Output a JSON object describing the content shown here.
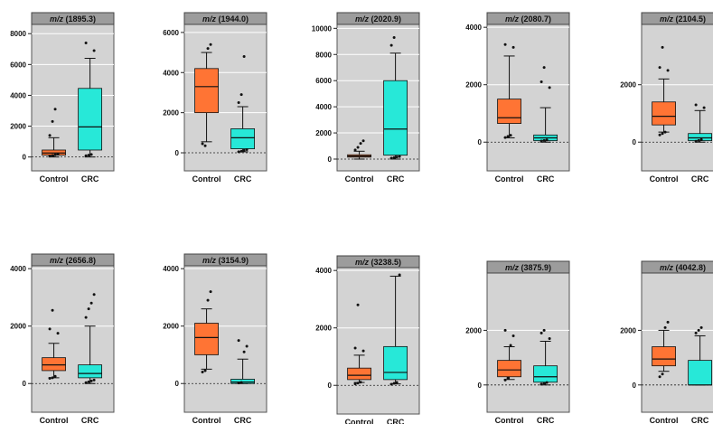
{
  "chart_data": [
    {
      "type": "box",
      "title_prefix": "m/z",
      "title_value": "(1895.3)",
      "categories": [
        "Control",
        "CRC"
      ],
      "ylim": [
        -900,
        8600
      ],
      "yticks": [
        0,
        2000,
        4000,
        6000,
        8000
      ],
      "tick_labels": [
        "0",
        "2000",
        "4000",
        "6000",
        "8000"
      ],
      "boxes": [
        {
          "name": "Control",
          "color": "#ff7434",
          "q1": 120,
          "median": 260,
          "q3": 450,
          "whisker_low": 0,
          "whisker_high": 1250,
          "outliers_low": [
            60,
            100,
            140,
            180
          ],
          "outliers_high": [
            1400,
            2300,
            3100
          ]
        },
        {
          "name": "CRC",
          "color": "#27e8d8",
          "q1": 450,
          "median": 1950,
          "q3": 4450,
          "whisker_low": 0,
          "whisker_high": 6400,
          "outliers_low": [
            80,
            120,
            160
          ],
          "outliers_high": [
            6900,
            7400
          ]
        }
      ]
    },
    {
      "type": "box",
      "title_prefix": "m/z",
      "title_value": "(1944.0)",
      "categories": [
        "Control",
        "CRC"
      ],
      "ylim": [
        -900,
        6400
      ],
      "yticks": [
        0,
        2000,
        4000,
        6000
      ],
      "tick_labels": [
        "0",
        "2000",
        "4000",
        "6000"
      ],
      "boxes": [
        {
          "name": "Control",
          "color": "#ff7434",
          "q1": 2000,
          "median": 3300,
          "q3": 4200,
          "whisker_low": 550,
          "whisker_high": 5000,
          "outliers_low": [
            450,
            350
          ],
          "outliers_high": [
            5200,
            5400
          ]
        },
        {
          "name": "CRC",
          "color": "#27e8d8",
          "q1": 200,
          "median": 750,
          "q3": 1200,
          "whisker_low": 50,
          "whisker_high": 2300,
          "outliers_low": [
            50,
            80,
            120,
            160
          ],
          "outliers_high": [
            2500,
            2900,
            4800
          ]
        }
      ]
    },
    {
      "type": "box",
      "title_prefix": "m/z",
      "title_value": "(2020.9)",
      "categories": [
        "Control",
        "CRC"
      ],
      "ylim": [
        -900,
        10300
      ],
      "yticks": [
        0,
        2000,
        4000,
        6000,
        8000,
        10000
      ],
      "tick_labels": [
        "0",
        "2000",
        "4000",
        "6000",
        "8000",
        "10000"
      ],
      "boxes": [
        {
          "name": "Control",
          "color": "#ff7434",
          "q1": 150,
          "median": 230,
          "q3": 330,
          "whisker_low": 0,
          "whisker_high": 600,
          "outliers_low": [],
          "outliers_high": [
            700,
            900,
            1200,
            1400
          ]
        },
        {
          "name": "CRC",
          "color": "#27e8d8",
          "q1": 300,
          "median": 2300,
          "q3": 6000,
          "whisker_low": 0,
          "whisker_high": 8100,
          "outliers_low": [
            80,
            120,
            160,
            200
          ],
          "outliers_high": [
            8700,
            9300
          ]
        }
      ]
    },
    {
      "type": "box",
      "title_prefix": "m/z",
      "title_value": "(2080.7)",
      "categories": [
        "Control",
        "CRC"
      ],
      "ylim": [
        -1000,
        4100
      ],
      "yticks": [
        0,
        2000,
        4000
      ],
      "tick_labels": [
        "0",
        "2000",
        "4000"
      ],
      "boxes": [
        {
          "name": "Control",
          "color": "#ff7434",
          "q1": 650,
          "median": 850,
          "q3": 1500,
          "whisker_low": 150,
          "whisker_high": 3000,
          "outliers_low": [
            160,
            200,
            240
          ],
          "outliers_high": [
            3300,
            3400
          ]
        },
        {
          "name": "CRC",
          "color": "#27e8d8",
          "q1": 50,
          "median": 150,
          "q3": 250,
          "whisker_low": 0,
          "whisker_high": 1200,
          "outliers_low": [
            40,
            60,
            80
          ],
          "outliers_high": [
            1900,
            2100,
            2600
          ]
        }
      ]
    },
    {
      "type": "box",
      "title_prefix": "m/z",
      "title_value": "(2104.5)",
      "categories": [
        "Control",
        "CRC"
      ],
      "ylim": [
        -1000,
        4100
      ],
      "yticks": [
        0,
        2000
      ],
      "tick_labels": [
        "0",
        "2000"
      ],
      "boxes": [
        {
          "name": "Control",
          "color": "#ff7434",
          "q1": 600,
          "median": 900,
          "q3": 1400,
          "whisker_low": 350,
          "whisker_high": 2200,
          "outliers_low": [
            250,
            300,
            350
          ],
          "outliers_high": [
            2500,
            2600,
            3300
          ]
        },
        {
          "name": "CRC",
          "color": "#27e8d8",
          "q1": 50,
          "median": 150,
          "q3": 300,
          "whisker_low": 0,
          "whisker_high": 1100,
          "outliers_low": [
            30,
            60,
            90
          ],
          "outliers_high": [
            1200,
            1300
          ]
        }
      ]
    },
    {
      "type": "box",
      "title_prefix": "m/z",
      "title_value": "(2656.8)",
      "categories": [
        "Control",
        "CRC"
      ],
      "ylim": [
        -1000,
        4100
      ],
      "yticks": [
        0,
        2000,
        4000
      ],
      "tick_labels": [
        "0",
        "2000",
        "4000"
      ],
      "boxes": [
        {
          "name": "Control",
          "color": "#ff7434",
          "q1": 450,
          "median": 650,
          "q3": 900,
          "whisker_low": 200,
          "whisker_high": 1400,
          "outliers_low": [
            180,
            200,
            250
          ],
          "outliers_high": [
            1750,
            1900,
            2550
          ]
        },
        {
          "name": "CRC",
          "color": "#27e8d8",
          "q1": 200,
          "median": 350,
          "q3": 650,
          "whisker_low": 0,
          "whisker_high": 2000,
          "outliers_low": [
            30,
            60,
            90,
            120
          ],
          "outliers_high": [
            2300,
            2600,
            2800,
            3100
          ]
        }
      ]
    },
    {
      "type": "box",
      "title_prefix": "m/z",
      "title_value": "(3154.9)",
      "categories": [
        "Control",
        "CRC"
      ],
      "ylim": [
        -1000,
        4100
      ],
      "yticks": [
        0,
        2000,
        4000
      ],
      "tick_labels": [
        "0",
        "2000",
        "4000"
      ],
      "boxes": [
        {
          "name": "Control",
          "color": "#ff7434",
          "q1": 1000,
          "median": 1600,
          "q3": 2100,
          "whisker_low": 500,
          "whisker_high": 2600,
          "outliers_low": [
            400,
            450
          ],
          "outliers_high": [
            2900,
            3200
          ]
        },
        {
          "name": "CRC",
          "color": "#27e8d8",
          "q1": 0,
          "median": 50,
          "q3": 150,
          "whisker_low": 0,
          "whisker_high": 850,
          "outliers_low": [
            20,
            40
          ],
          "outliers_high": [
            1100,
            1300,
            1500
          ]
        }
      ]
    },
    {
      "type": "box",
      "title_prefix": "m/z",
      "title_value": "(3238.5)",
      "categories": [
        "Control",
        "CRC"
      ],
      "ylim": [
        -1000,
        4100
      ],
      "yticks": [
        0,
        2000,
        4000
      ],
      "tick_labels": [
        "0",
        "2000",
        "4000"
      ],
      "boxes": [
        {
          "name": "Control",
          "color": "#ff7434",
          "q1": 200,
          "median": 350,
          "q3": 600,
          "whisker_low": 100,
          "whisker_high": 1050,
          "outliers_low": [
            50,
            80,
            110
          ],
          "outliers_high": [
            1200,
            1300,
            2800
          ]
        },
        {
          "name": "CRC",
          "color": "#27e8d8",
          "q1": 200,
          "median": 450,
          "q3": 1350,
          "whisker_low": 50,
          "whisker_high": 3800,
          "outliers_low": [
            40,
            70,
            100
          ],
          "outliers_high": [
            3850
          ]
        }
      ]
    },
    {
      "type": "box",
      "title_prefix": "m/z",
      "title_value": "(3875.9)",
      "categories": [
        "Control",
        "CRC"
      ],
      "ylim": [
        -1000,
        4100
      ],
      "yticks": [
        0,
        2000
      ],
      "tick_labels": [
        "0",
        "2000"
      ],
      "boxes": [
        {
          "name": "Control",
          "color": "#ff7434",
          "q1": 300,
          "median": 550,
          "q3": 900,
          "whisker_low": 200,
          "whisker_high": 1400,
          "outliers_low": [
            180,
            250
          ],
          "outliers_high": [
            1450,
            1800,
            2000
          ]
        },
        {
          "name": "CRC",
          "color": "#27e8d8",
          "q1": 100,
          "median": 300,
          "q3": 700,
          "whisker_low": 0,
          "whisker_high": 1600,
          "outliers_low": [
            30,
            60,
            90
          ],
          "outliers_high": [
            1700,
            1900,
            2000
          ]
        }
      ]
    },
    {
      "type": "box",
      "title_prefix": "m/z",
      "title_value": "(4042.8)",
      "categories": [
        "Control",
        "CRC"
      ],
      "ylim": [
        -1000,
        4100
      ],
      "yticks": [
        0,
        2000
      ],
      "tick_labels": [
        "0",
        "2000"
      ],
      "boxes": [
        {
          "name": "Control",
          "color": "#ff7434",
          "q1": 700,
          "median": 950,
          "q3": 1400,
          "whisker_low": 500,
          "whisker_high": 2000,
          "outliers_low": [
            300,
            400
          ],
          "outliers_high": [
            2100,
            2300
          ]
        },
        {
          "name": "CRC",
          "color": "#27e8d8",
          "q1": 0,
          "median": 0,
          "q3": 900,
          "whisker_low": 0,
          "whisker_high": 1800,
          "outliers_low": [],
          "outliers_high": [
            1900,
            2000,
            2100
          ]
        }
      ]
    }
  ]
}
